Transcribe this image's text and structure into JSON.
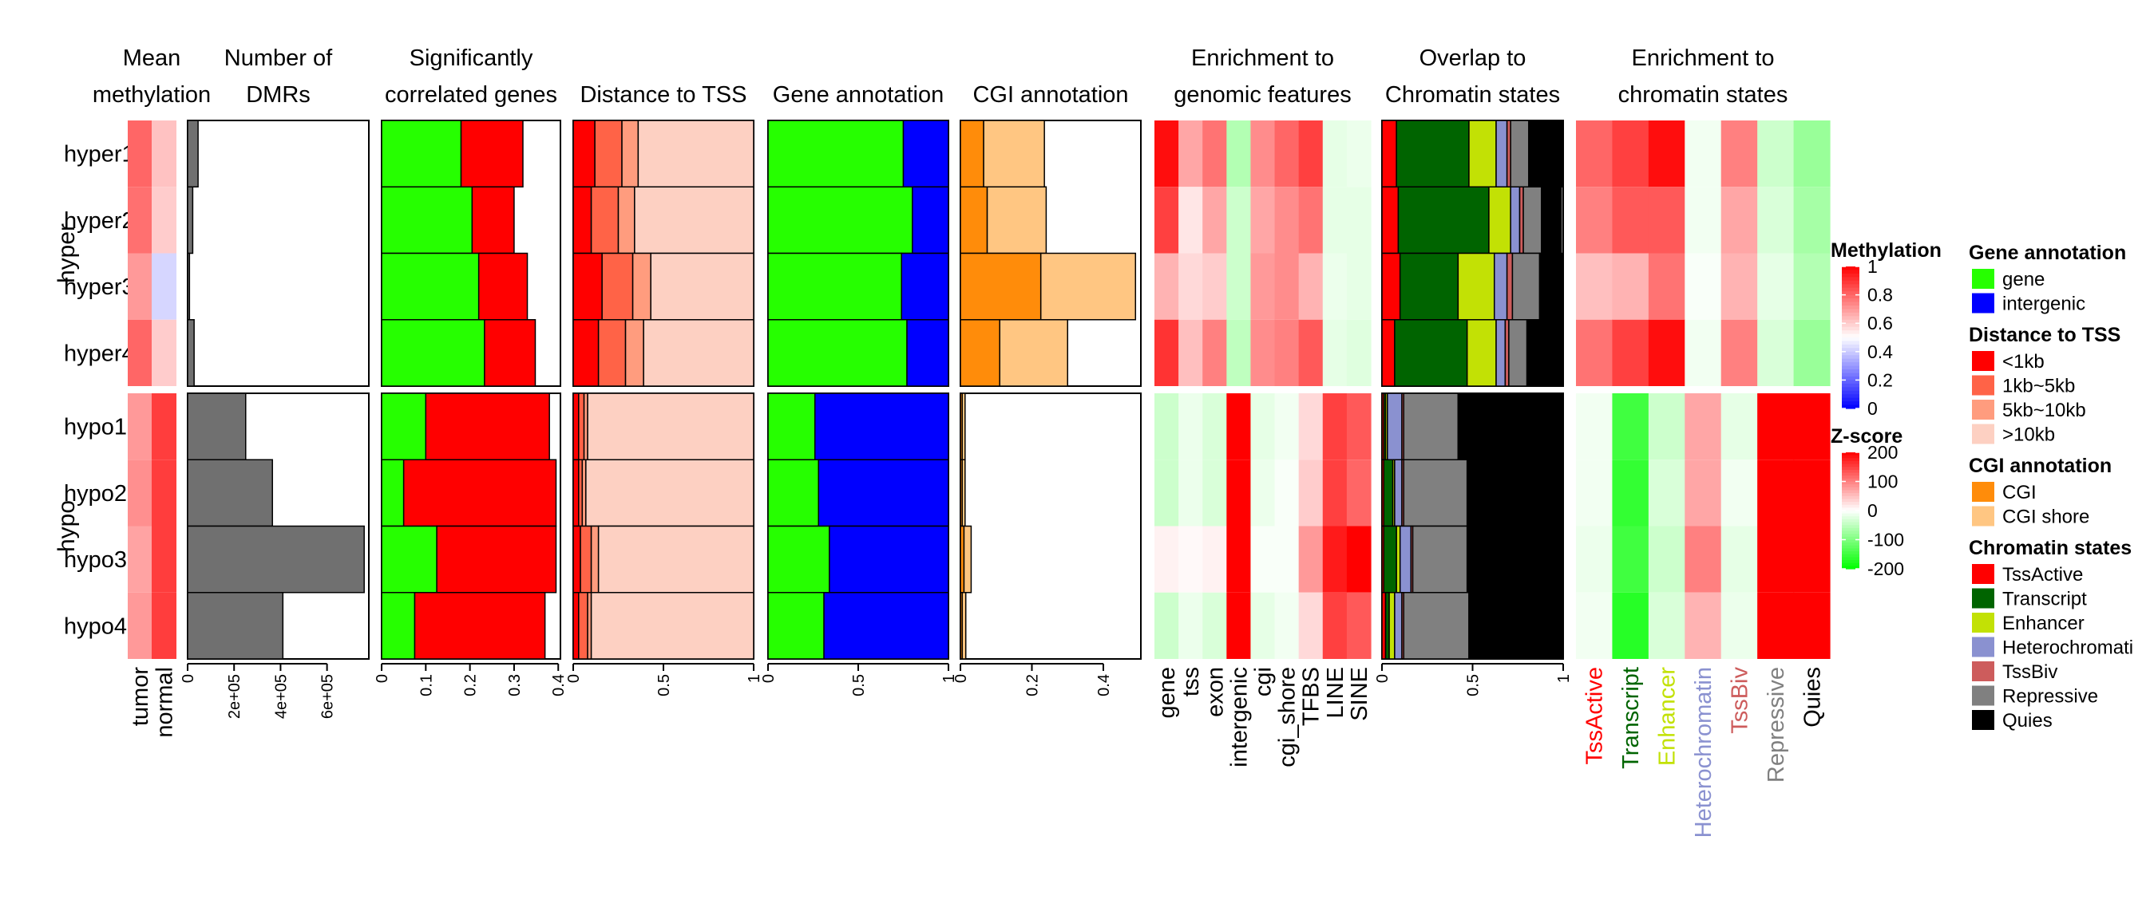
{
  "chart_data": {
    "type": "heatmap",
    "rows": [
      "hyper1",
      "hyper2",
      "hyper3",
      "hyper4",
      "hypo1",
      "hypo2",
      "hypo3",
      "hypo4"
    ],
    "row_groups": [
      {
        "label": "hyper",
        "rows": [
          0,
          1,
          2,
          3
        ]
      },
      {
        "label": "hypo",
        "rows": [
          4,
          5,
          6,
          7
        ]
      }
    ],
    "mean_methylation": {
      "title": [
        "Mean",
        "methylation"
      ],
      "columns": [
        "tumor",
        "normal"
      ],
      "values": [
        [
          0.8,
          0.62
        ],
        [
          0.78,
          0.6
        ],
        [
          0.7,
          0.42
        ],
        [
          0.8,
          0.6
        ],
        [
          0.7,
          0.88
        ],
        [
          0.72,
          0.88
        ],
        [
          0.68,
          0.88
        ],
        [
          0.7,
          0.88
        ]
      ]
    },
    "num_dmrs": {
      "title": [
        "Number of",
        "DMRs"
      ],
      "ticks": [
        0,
        200000,
        400000,
        600000
      ],
      "tick_labels": [
        "0",
        "2e+05",
        "4e+05",
        "6e+05"
      ],
      "xlim": [
        0,
        780000
      ],
      "values": [
        45000,
        22000,
        8000,
        28000,
        250000,
        365000,
        760000,
        410000
      ]
    },
    "sig_genes": {
      "title": [
        "Significantly",
        "correlated genes"
      ],
      "ticks": [
        0,
        0.1,
        0.2,
        0.3,
        0.4
      ],
      "tick_labels": [
        "0",
        "0.1",
        "0.2",
        "0.3",
        "0.4"
      ],
      "xlim": [
        0,
        0.405
      ],
      "series": [
        {
          "name": "gene",
          "color": "#26ff00",
          "values": [
            0.18,
            0.205,
            0.22,
            0.233,
            0.1,
            0.05,
            0.125,
            0.075
          ]
        },
        {
          "name": "intergenic",
          "color": "#ff0000",
          "values": [
            0.14,
            0.095,
            0.11,
            0.115,
            0.28,
            0.345,
            0.27,
            0.295
          ]
        }
      ]
    },
    "dist_tss": {
      "title": [
        "Distance to TSS"
      ],
      "ticks": [
        0,
        0.5,
        1
      ],
      "tick_labels": [
        "0",
        "0.5",
        "1"
      ],
      "xlim": [
        0,
        1
      ],
      "series": [
        {
          "name": "<1kb",
          "color": "#ff0000",
          "values": [
            0.12,
            0.1,
            0.16,
            0.14,
            0.03,
            0.03,
            0.04,
            0.03
          ]
        },
        {
          "name": "1kb~5kb",
          "color": "#ff6347",
          "values": [
            0.15,
            0.15,
            0.17,
            0.15,
            0.03,
            0.02,
            0.06,
            0.05
          ]
        },
        {
          "name": "5kb~10kb",
          "color": "#ff9c7e",
          "values": [
            0.09,
            0.09,
            0.1,
            0.1,
            0.02,
            0.02,
            0.04,
            0.02
          ]
        },
        {
          "name": ">10kb",
          "color": "#fdd0c2",
          "values": [
            0.64,
            0.66,
            0.57,
            0.61,
            0.92,
            0.93,
            0.86,
            0.9
          ]
        }
      ]
    },
    "gene_annotation": {
      "title": [
        "Gene annotation"
      ],
      "ticks": [
        0,
        0.5,
        1
      ],
      "tick_labels": [
        "0",
        "0.5",
        "1"
      ],
      "xlim": [
        0,
        1
      ],
      "series": [
        {
          "name": "gene",
          "color": "#26ff00",
          "values": [
            0.75,
            0.8,
            0.74,
            0.77,
            0.26,
            0.28,
            0.34,
            0.31
          ]
        },
        {
          "name": "intergenic",
          "color": "#0000ff",
          "values": [
            0.25,
            0.2,
            0.26,
            0.23,
            0.74,
            0.72,
            0.66,
            0.69
          ]
        }
      ]
    },
    "cgi_annotation": {
      "title": [
        "CGI annotation"
      ],
      "ticks": [
        0,
        0.2,
        0.4
      ],
      "tick_labels": [
        "0",
        "0.2",
        "0.4"
      ],
      "xlim": [
        0,
        0.505
      ],
      "series": [
        {
          "name": "CGI",
          "color": "#ff8c0a",
          "values": [
            0.065,
            0.075,
            0.225,
            0.11,
            0.005,
            0.005,
            0.01,
            0.005
          ]
        },
        {
          "name": "CGI shore",
          "color": "#ffc682",
          "values": [
            0.17,
            0.165,
            0.265,
            0.19,
            0.008,
            0.008,
            0.02,
            0.01
          ]
        }
      ]
    },
    "enrich_genomic": {
      "title": [
        "Enrichment to",
        "genomic features"
      ],
      "columns": [
        "gene",
        "tss",
        "exon",
        "intergenic",
        "cgi",
        "cgi_shore",
        "TFBS",
        "LINE",
        "SINE"
      ],
      "values": [
        [
          190,
          70,
          110,
          -60,
          90,
          120,
          150,
          -20,
          -15
        ],
        [
          150,
          20,
          70,
          -40,
          70,
          90,
          110,
          -20,
          -20
        ],
        [
          60,
          30,
          40,
          -40,
          80,
          90,
          60,
          -15,
          -20
        ],
        [
          160,
          50,
          100,
          -50,
          90,
          100,
          130,
          -20,
          -25
        ],
        [
          -40,
          -15,
          -30,
          200,
          -20,
          -10,
          30,
          150,
          130
        ],
        [
          -40,
          -15,
          -30,
          200,
          -15,
          -5,
          40,
          150,
          120
        ],
        [
          10,
          5,
          10,
          200,
          -5,
          -5,
          80,
          180,
          220
        ],
        [
          -40,
          -15,
          -30,
          200,
          -20,
          -10,
          30,
          150,
          130
        ]
      ]
    },
    "overlap_chromatin": {
      "title": [
        "Overlap to",
        "Chromatin states"
      ],
      "ticks": [
        0,
        0.5,
        1
      ],
      "tick_labels": [
        "0",
        "0.5",
        "1"
      ],
      "xlim": [
        0,
        1
      ],
      "series": [
        {
          "name": "TssActive",
          "color": "#ff0000",
          "values": [
            0.08,
            0.09,
            0.1,
            0.07,
            0.01,
            0.01,
            0.01,
            0.02
          ]
        },
        {
          "name": "Transcript",
          "color": "#006400",
          "values": [
            0.4,
            0.5,
            0.32,
            0.4,
            0.01,
            0.05,
            0.07,
            0.02
          ]
        },
        {
          "name": "Enhancer",
          "color": "#c2e105",
          "values": [
            0.15,
            0.12,
            0.2,
            0.16,
            0.01,
            0.01,
            0.02,
            0.03
          ]
        },
        {
          "name": "Heterochromatin",
          "color": "#8a91d0",
          "values": [
            0.06,
            0.05,
            0.07,
            0.05,
            0.08,
            0.04,
            0.06,
            0.04
          ]
        },
        {
          "name": "TssBiv",
          "color": "#cd5c5c",
          "values": [
            0.02,
            0.02,
            0.03,
            0.02,
            0.01,
            0.01,
            0.01,
            0.01
          ]
        },
        {
          "name": "Repressive",
          "color": "#808080",
          "values": [
            0.1,
            0.1,
            0.15,
            0.1,
            0.3,
            0.35,
            0.3,
            0.36
          ]
        },
        {
          "name": "Quies",
          "color": "#000000",
          "values": [
            0.19,
            0.11,
            0.13,
            0.2,
            0.58,
            0.53,
            0.53,
            0.52
          ]
        }
      ]
    },
    "enrich_chromatin": {
      "title": [
        "Enrichment to",
        "chromatin states"
      ],
      "columns": [
        "TssActive",
        "Transcript",
        "Enhancer",
        "Heterochromatin",
        "TssBiv",
        "Repressive",
        "Quies"
      ],
      "column_colors": [
        "#ff0000",
        "#006400",
        "#c2e105",
        "#8a91d0",
        "#cd5c5c",
        "#808080",
        "#000000"
      ],
      "values": [
        [
          120,
          150,
          190,
          -10,
          100,
          -40,
          -80
        ],
        [
          100,
          130,
          130,
          -10,
          70,
          -30,
          -70
        ],
        [
          50,
          60,
          110,
          -5,
          60,
          -20,
          -60
        ],
        [
          110,
          150,
          190,
          -10,
          100,
          -30,
          -80
        ],
        [
          -10,
          -150,
          -40,
          70,
          -20,
          200,
          200
        ],
        [
          -10,
          -160,
          -30,
          70,
          -10,
          200,
          200
        ],
        [
          -15,
          -150,
          -40,
          100,
          -20,
          200,
          200
        ],
        [
          -10,
          -170,
          -30,
          60,
          -15,
          200,
          200
        ]
      ]
    },
    "legends": {
      "methylation": {
        "title": "Methylation",
        "ticks": [
          1,
          0.8,
          0.6,
          0.4,
          0.2,
          0
        ],
        "tick_labels": [
          "1",
          "0.8",
          "0.6",
          "0.4",
          "0.2",
          "0"
        ],
        "colors": [
          "#0000ff",
          "#ffffff",
          "#ff0000"
        ]
      },
      "zscore": {
        "title": "Z-score",
        "ticks": [
          200,
          100,
          0,
          -100,
          -200
        ],
        "tick_labels": [
          "200",
          "100",
          "0",
          "-100",
          "-200"
        ],
        "colors": [
          "#00ff00",
          "#ffffff",
          "#ff0000"
        ]
      },
      "gene_annotation": {
        "title": "Gene annotation",
        "items": [
          {
            "label": "gene",
            "color": "#26ff00"
          },
          {
            "label": "intergenic",
            "color": "#0000ff"
          }
        ]
      },
      "dist_tss": {
        "title": "Distance to TSS",
        "items": [
          {
            "label": "<1kb",
            "color": "#ff0000"
          },
          {
            "label": "1kb~5kb",
            "color": "#ff6347"
          },
          {
            "label": "5kb~10kb",
            "color": "#ff9c7e"
          },
          {
            "label": ">10kb",
            "color": "#fdd0c2"
          }
        ]
      },
      "cgi_annotation": {
        "title": "CGI annotation",
        "items": [
          {
            "label": "CGI",
            "color": "#ff8c0a"
          },
          {
            "label": "CGI shore",
            "color": "#ffc682"
          }
        ]
      },
      "chromatin_states": {
        "title": "Chromatin states",
        "items": [
          {
            "label": "TssActive",
            "color": "#ff0000"
          },
          {
            "label": "Transcript",
            "color": "#006400"
          },
          {
            "label": "Enhancer",
            "color": "#c2e105"
          },
          {
            "label": "Heterochromati",
            "color": "#8a91d0"
          },
          {
            "label": "TssBiv",
            "color": "#cd5c5c"
          },
          {
            "label": "Repressive",
            "color": "#808080"
          },
          {
            "label": "Quies",
            "color": "#000000"
          }
        ]
      }
    }
  }
}
